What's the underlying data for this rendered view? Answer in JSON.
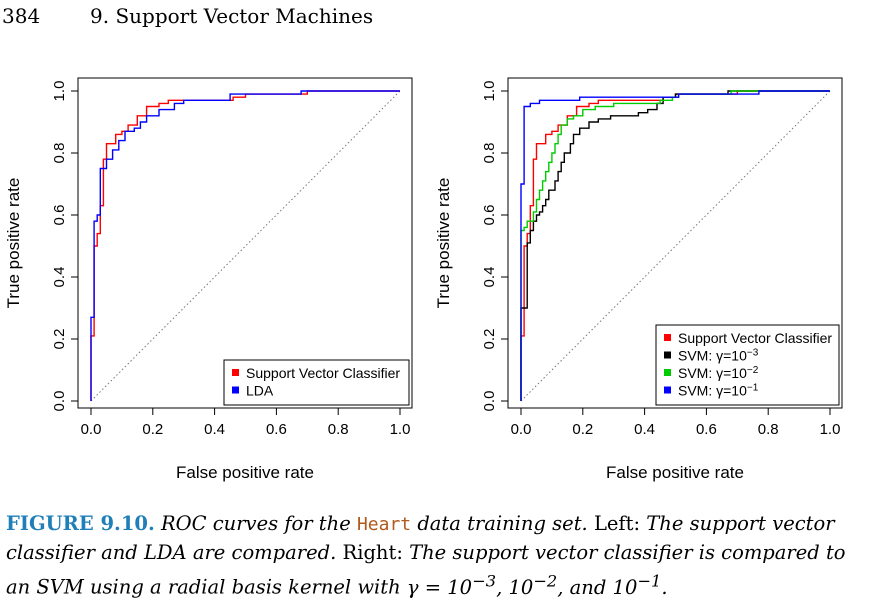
{
  "header": {
    "page_number": "384",
    "chapter": "9.  Support Vector Machines"
  },
  "chart_data": [
    {
      "type": "line",
      "xlabel": "False positive rate",
      "ylabel": "True positive rate",
      "xlim": [
        0,
        1
      ],
      "ylim": [
        0,
        1
      ],
      "x_ticks": [
        "0.0",
        "0.2",
        "0.4",
        "0.6",
        "0.8",
        "1.0"
      ],
      "y_ticks": [
        "0.0",
        "0.2",
        "0.4",
        "0.6",
        "0.8",
        "1.0"
      ],
      "grid": false,
      "diagonal_reference": true,
      "legend_position": "bottom-right",
      "series": [
        {
          "name": "Support Vector Classifier",
          "color": "#ff0000",
          "points": [
            [
              0,
              0
            ],
            [
              0,
              0.21
            ],
            [
              0.01,
              0.21
            ],
            [
              0.01,
              0.5
            ],
            [
              0.02,
              0.5
            ],
            [
              0.02,
              0.54
            ],
            [
              0.03,
              0.54
            ],
            [
              0.03,
              0.63
            ],
            [
              0.04,
              0.63
            ],
            [
              0.04,
              0.78
            ],
            [
              0.05,
              0.78
            ],
            [
              0.05,
              0.83
            ],
            [
              0.08,
              0.83
            ],
            [
              0.08,
              0.86
            ],
            [
              0.1,
              0.86
            ],
            [
              0.1,
              0.87
            ],
            [
              0.12,
              0.87
            ],
            [
              0.12,
              0.89
            ],
            [
              0.15,
              0.89
            ],
            [
              0.15,
              0.92
            ],
            [
              0.18,
              0.92
            ],
            [
              0.18,
              0.95
            ],
            [
              0.22,
              0.95
            ],
            [
              0.22,
              0.96
            ],
            [
              0.25,
              0.96
            ],
            [
              0.25,
              0.97
            ],
            [
              0.46,
              0.97
            ],
            [
              0.46,
              0.98
            ],
            [
              0.5,
              0.98
            ],
            [
              0.5,
              0.99
            ],
            [
              0.7,
              0.99
            ],
            [
              0.7,
              1.0
            ],
            [
              1.0,
              1.0
            ]
          ]
        },
        {
          "name": "LDA",
          "color": "#0000ff",
          "points": [
            [
              0,
              0
            ],
            [
              0,
              0.27
            ],
            [
              0.01,
              0.27
            ],
            [
              0.01,
              0.58
            ],
            [
              0.02,
              0.58
            ],
            [
              0.02,
              0.6
            ],
            [
              0.03,
              0.6
            ],
            [
              0.03,
              0.75
            ],
            [
              0.05,
              0.75
            ],
            [
              0.05,
              0.78
            ],
            [
              0.07,
              0.78
            ],
            [
              0.07,
              0.81
            ],
            [
              0.09,
              0.81
            ],
            [
              0.09,
              0.84
            ],
            [
              0.11,
              0.84
            ],
            [
              0.11,
              0.87
            ],
            [
              0.14,
              0.87
            ],
            [
              0.14,
              0.88
            ],
            [
              0.16,
              0.88
            ],
            [
              0.16,
              0.9
            ],
            [
              0.18,
              0.9
            ],
            [
              0.18,
              0.92
            ],
            [
              0.22,
              0.92
            ],
            [
              0.22,
              0.94
            ],
            [
              0.27,
              0.94
            ],
            [
              0.27,
              0.96
            ],
            [
              0.3,
              0.96
            ],
            [
              0.3,
              0.97
            ],
            [
              0.45,
              0.97
            ],
            [
              0.45,
              0.99
            ],
            [
              0.68,
              0.99
            ],
            [
              0.68,
              1.0
            ],
            [
              1.0,
              1.0
            ]
          ]
        }
      ]
    },
    {
      "type": "line",
      "xlabel": "False positive rate",
      "ylabel": "True positive rate",
      "xlim": [
        0,
        1
      ],
      "ylim": [
        0,
        1
      ],
      "x_ticks": [
        "0.0",
        "0.2",
        "0.4",
        "0.6",
        "0.8",
        "1.0"
      ],
      "y_ticks": [
        "0.0",
        "0.2",
        "0.4",
        "0.6",
        "0.8",
        "1.0"
      ],
      "grid": false,
      "diagonal_reference": true,
      "legend_position": "bottom-right",
      "series": [
        {
          "name": "Support Vector Classifier",
          "color": "#ff0000",
          "points": [
            [
              0,
              0
            ],
            [
              0,
              0.21
            ],
            [
              0.01,
              0.21
            ],
            [
              0.01,
              0.5
            ],
            [
              0.02,
              0.5
            ],
            [
              0.02,
              0.54
            ],
            [
              0.03,
              0.54
            ],
            [
              0.03,
              0.63
            ],
            [
              0.04,
              0.63
            ],
            [
              0.04,
              0.78
            ],
            [
              0.05,
              0.78
            ],
            [
              0.05,
              0.83
            ],
            [
              0.08,
              0.83
            ],
            [
              0.08,
              0.86
            ],
            [
              0.1,
              0.86
            ],
            [
              0.1,
              0.87
            ],
            [
              0.12,
              0.87
            ],
            [
              0.12,
              0.89
            ],
            [
              0.15,
              0.89
            ],
            [
              0.15,
              0.92
            ],
            [
              0.18,
              0.92
            ],
            [
              0.18,
              0.95
            ],
            [
              0.22,
              0.95
            ],
            [
              0.22,
              0.96
            ],
            [
              0.25,
              0.96
            ],
            [
              0.25,
              0.97
            ],
            [
              0.46,
              0.97
            ],
            [
              0.46,
              0.98
            ],
            [
              0.5,
              0.98
            ],
            [
              0.5,
              0.99
            ],
            [
              0.7,
              0.99
            ],
            [
              0.7,
              1.0
            ],
            [
              1.0,
              1.0
            ]
          ]
        },
        {
          "name": "SVM: γ=10",
          "exponent": "−3",
          "color": "#000000",
          "points": [
            [
              0,
              0
            ],
            [
              0,
              0.3
            ],
            [
              0.02,
              0.3
            ],
            [
              0.02,
              0.51
            ],
            [
              0.03,
              0.51
            ],
            [
              0.03,
              0.55
            ],
            [
              0.04,
              0.55
            ],
            [
              0.04,
              0.58
            ],
            [
              0.05,
              0.58
            ],
            [
              0.05,
              0.6
            ],
            [
              0.06,
              0.6
            ],
            [
              0.06,
              0.61
            ],
            [
              0.07,
              0.61
            ],
            [
              0.07,
              0.63
            ],
            [
              0.08,
              0.63
            ],
            [
              0.08,
              0.65
            ],
            [
              0.09,
              0.65
            ],
            [
              0.09,
              0.68
            ],
            [
              0.11,
              0.68
            ],
            [
              0.11,
              0.71
            ],
            [
              0.12,
              0.71
            ],
            [
              0.12,
              0.74
            ],
            [
              0.13,
              0.74
            ],
            [
              0.13,
              0.77
            ],
            [
              0.14,
              0.77
            ],
            [
              0.14,
              0.8
            ],
            [
              0.16,
              0.8
            ],
            [
              0.16,
              0.83
            ],
            [
              0.17,
              0.83
            ],
            [
              0.17,
              0.86
            ],
            [
              0.19,
              0.86
            ],
            [
              0.19,
              0.88
            ],
            [
              0.22,
              0.88
            ],
            [
              0.22,
              0.9
            ],
            [
              0.25,
              0.9
            ],
            [
              0.25,
              0.91
            ],
            [
              0.29,
              0.91
            ],
            [
              0.29,
              0.92
            ],
            [
              0.38,
              0.92
            ],
            [
              0.38,
              0.93
            ],
            [
              0.41,
              0.93
            ],
            [
              0.41,
              0.94
            ],
            [
              0.44,
              0.94
            ],
            [
              0.44,
              0.96
            ],
            [
              0.46,
              0.96
            ],
            [
              0.46,
              0.98
            ],
            [
              0.5,
              0.98
            ],
            [
              0.5,
              0.99
            ],
            [
              0.67,
              0.99
            ],
            [
              0.67,
              1.0
            ],
            [
              1.0,
              1.0
            ]
          ]
        },
        {
          "name": "SVM: γ=10",
          "exponent": "−2",
          "color": "#00cc00",
          "points": [
            [
              0,
              0
            ],
            [
              0,
              0.55
            ],
            [
              0.01,
              0.55
            ],
            [
              0.01,
              0.56
            ],
            [
              0.02,
              0.56
            ],
            [
              0.02,
              0.58
            ],
            [
              0.04,
              0.58
            ],
            [
              0.04,
              0.61
            ],
            [
              0.05,
              0.61
            ],
            [
              0.05,
              0.65
            ],
            [
              0.06,
              0.65
            ],
            [
              0.06,
              0.68
            ],
            [
              0.07,
              0.68
            ],
            [
              0.07,
              0.71
            ],
            [
              0.08,
              0.71
            ],
            [
              0.08,
              0.74
            ],
            [
              0.09,
              0.74
            ],
            [
              0.09,
              0.77
            ],
            [
              0.1,
              0.77
            ],
            [
              0.1,
              0.8
            ],
            [
              0.11,
              0.8
            ],
            [
              0.11,
              0.83
            ],
            [
              0.12,
              0.83
            ],
            [
              0.12,
              0.86
            ],
            [
              0.13,
              0.86
            ],
            [
              0.13,
              0.89
            ],
            [
              0.15,
              0.89
            ],
            [
              0.15,
              0.91
            ],
            [
              0.17,
              0.91
            ],
            [
              0.17,
              0.92
            ],
            [
              0.2,
              0.92
            ],
            [
              0.2,
              0.94
            ],
            [
              0.24,
              0.94
            ],
            [
              0.24,
              0.95
            ],
            [
              0.3,
              0.95
            ],
            [
              0.3,
              0.96
            ],
            [
              0.45,
              0.96
            ],
            [
              0.45,
              0.97
            ],
            [
              0.49,
              0.97
            ],
            [
              0.49,
              0.98
            ],
            [
              0.51,
              0.98
            ],
            [
              0.51,
              0.99
            ],
            [
              0.68,
              0.99
            ],
            [
              0.68,
              1.0
            ],
            [
              1.0,
              1.0
            ]
          ]
        },
        {
          "name": "SVM: γ=10",
          "exponent": "−1",
          "color": "#0000ff",
          "points": [
            [
              0,
              0
            ],
            [
              0,
              0.7
            ],
            [
              0.01,
              0.7
            ],
            [
              0.01,
              0.95
            ],
            [
              0.03,
              0.95
            ],
            [
              0.03,
              0.96
            ],
            [
              0.06,
              0.96
            ],
            [
              0.06,
              0.97
            ],
            [
              0.19,
              0.97
            ],
            [
              0.19,
              0.98
            ],
            [
              0.51,
              0.98
            ],
            [
              0.51,
              0.99
            ],
            [
              0.77,
              0.99
            ],
            [
              0.77,
              1.0
            ],
            [
              1.0,
              1.0
            ]
          ]
        }
      ]
    }
  ],
  "caption": {
    "label": "FIGURE 9.10.",
    "t1": "ROC curves for the",
    "code": "Heart",
    "t2": "data training set.",
    "left_label": "Left:",
    "t3": "The support vector classifier and LDA are compared.",
    "right_label": "Right:",
    "t4": "The support vector classifier is compared to an SVM using a radial basis kernel with",
    "gamma_expr": "γ = 10",
    "exp1": "−3",
    "sep1": ",",
    "ten2": "10",
    "exp2": "−2",
    "sep2": ", and",
    "ten3": "10",
    "exp3": "−1",
    "end": "."
  }
}
